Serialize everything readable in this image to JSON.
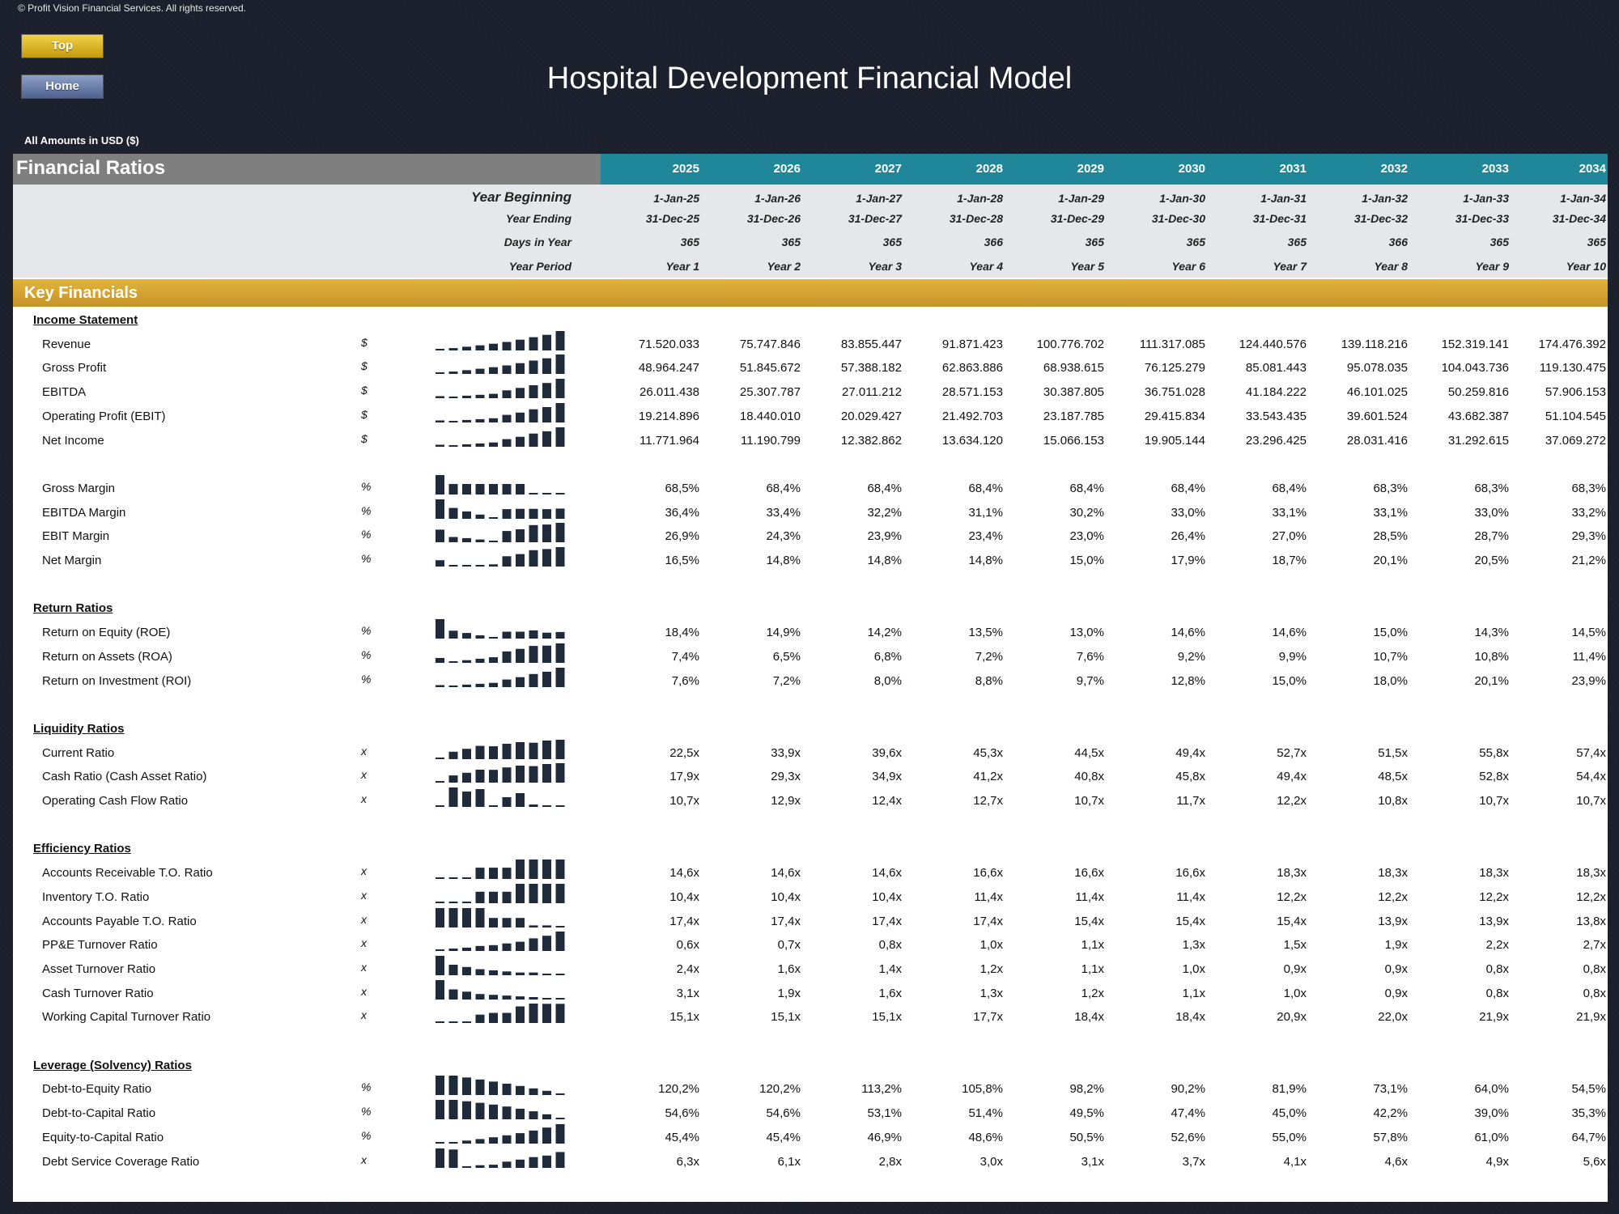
{
  "copyright": "© Profit Vision Financial Services. All rights reserved.",
  "nav": {
    "top_label": "Top",
    "home_label": "Home"
  },
  "title": "Hospital Development Financial Model",
  "amounts_note": "All Amounts in  USD ($)",
  "sheet_title": "Financial Ratios",
  "years": [
    "2025",
    "2026",
    "2027",
    "2028",
    "2029",
    "2030",
    "2031",
    "2032",
    "2033",
    "2034"
  ],
  "meta_rows": [
    {
      "label": "Year Beginning",
      "values": [
        "1-Jan-25",
        "1-Jan-26",
        "1-Jan-27",
        "1-Jan-28",
        "1-Jan-29",
        "1-Jan-30",
        "1-Jan-31",
        "1-Jan-32",
        "1-Jan-33",
        "1-Jan-34"
      ]
    },
    {
      "label": "Year Ending",
      "values": [
        "31-Dec-25",
        "31-Dec-26",
        "31-Dec-27",
        "31-Dec-28",
        "31-Dec-29",
        "31-Dec-30",
        "31-Dec-31",
        "31-Dec-32",
        "31-Dec-33",
        "31-Dec-34"
      ]
    },
    {
      "label": "Days in Year",
      "values": [
        "365",
        "365",
        "365",
        "366",
        "365",
        "365",
        "365",
        "366",
        "365",
        "365"
      ]
    },
    {
      "label": "Year Period",
      "values": [
        "Year 1",
        "Year 2",
        "Year 3",
        "Year 4",
        "Year 5",
        "Year 6",
        "Year 7",
        "Year 8",
        "Year 9",
        "Year 10"
      ]
    }
  ],
  "key_financials_label": "Key Financials",
  "colors": {
    "teal": "#20879a",
    "gold": "#d4a52f",
    "spark": "#1f2a3a"
  },
  "sections": [
    {
      "title": "Income Statement",
      "rows": [
        {
          "label": "Revenue",
          "unit": "$",
          "values": [
            "71.520.033",
            "75.747.846",
            "83.855.447",
            "91.871.423",
            "100.776.702",
            "111.317.085",
            "124.440.576",
            "139.118.216",
            "152.319.141",
            "174.476.392"
          ],
          "spark": [
            71520033,
            75747846,
            83855447,
            91871423,
            100776702,
            111317085,
            124440576,
            139118216,
            152319141,
            174476392
          ]
        },
        {
          "label": "Gross Profit",
          "unit": "$",
          "values": [
            "48.964.247",
            "51.845.672",
            "57.388.182",
            "62.863.886",
            "68.938.615",
            "76.125.279",
            "85.081.443",
            "95.078.035",
            "104.043.736",
            "119.130.475"
          ],
          "spark": [
            48964247,
            51845672,
            57388182,
            62863886,
            68938615,
            76125279,
            85081443,
            95078035,
            104043736,
            119130475
          ]
        },
        {
          "label": "EBITDA",
          "unit": "$",
          "values": [
            "26.011.438",
            "25.307.787",
            "27.011.212",
            "28.571.153",
            "30.387.805",
            "36.751.028",
            "41.184.222",
            "46.101.025",
            "50.259.816",
            "57.906.153"
          ],
          "spark": [
            26011438,
            25307787,
            27011212,
            28571153,
            30387805,
            36751028,
            41184222,
            46101025,
            50259816,
            57906153
          ]
        },
        {
          "label": "Operating Profit (EBIT)",
          "unit": "$",
          "values": [
            "19.214.896",
            "18.440.010",
            "20.029.427",
            "21.492.703",
            "23.187.785",
            "29.415.834",
            "33.543.435",
            "39.601.524",
            "43.682.387",
            "51.104.545"
          ],
          "spark": [
            19214896,
            18440010,
            20029427,
            21492703,
            23187785,
            29415834,
            33543435,
            39601524,
            43682387,
            51104545
          ]
        },
        {
          "label": "Net Income",
          "unit": "$",
          "values": [
            "11.771.964",
            "11.190.799",
            "12.382.862",
            "13.634.120",
            "15.066.153",
            "19.905.144",
            "23.296.425",
            "28.031.416",
            "31.292.615",
            "37.069.272"
          ],
          "spark": [
            11771964,
            11190799,
            12382862,
            13634120,
            15066153,
            19905144,
            23296425,
            28031416,
            31292615,
            37069272
          ]
        },
        {
          "gap": true
        },
        {
          "label": "Gross Margin",
          "unit": "%",
          "values": [
            "68,5%",
            "68,4%",
            "68,4%",
            "68,4%",
            "68,4%",
            "68,4%",
            "68,4%",
            "68,3%",
            "68,3%",
            "68,3%"
          ],
          "spark": [
            68.5,
            68.4,
            68.4,
            68.4,
            68.4,
            68.4,
            68.4,
            68.3,
            68.3,
            68.3
          ]
        },
        {
          "label": "EBITDA Margin",
          "unit": "%",
          "values": [
            "36,4%",
            "33,4%",
            "32,2%",
            "31,1%",
            "30,2%",
            "33,0%",
            "33,1%",
            "33,1%",
            "33,0%",
            "33,2%"
          ],
          "spark": [
            36.4,
            33.4,
            32.2,
            31.1,
            30.2,
            33.0,
            33.1,
            33.1,
            33.0,
            33.2
          ]
        },
        {
          "label": "EBIT Margin",
          "unit": "%",
          "values": [
            "26,9%",
            "24,3%",
            "23,9%",
            "23,4%",
            "23,0%",
            "26,4%",
            "27,0%",
            "28,5%",
            "28,7%",
            "29,3%"
          ],
          "spark": [
            26.9,
            24.3,
            23.9,
            23.4,
            23.0,
            26.4,
            27.0,
            28.5,
            28.7,
            29.3
          ]
        },
        {
          "label": "Net Margin",
          "unit": "%",
          "values": [
            "16,5%",
            "14,8%",
            "14,8%",
            "14,8%",
            "15,0%",
            "17,9%",
            "18,7%",
            "20,1%",
            "20,5%",
            "21,2%"
          ],
          "spark": [
            16.5,
            14.8,
            14.8,
            14.8,
            15.0,
            17.9,
            18.7,
            20.1,
            20.5,
            21.2
          ]
        }
      ]
    },
    {
      "title": "Return Ratios",
      "rows": [
        {
          "label": "Return on Equity (ROE)",
          "unit": "%",
          "values": [
            "18,4%",
            "14,9%",
            "14,2%",
            "13,5%",
            "13,0%",
            "14,6%",
            "14,6%",
            "15,0%",
            "14,3%",
            "14,5%"
          ],
          "spark": [
            18.4,
            14.9,
            14.2,
            13.5,
            13.0,
            14.6,
            14.6,
            15.0,
            14.3,
            14.5
          ]
        },
        {
          "label": "Return on Assets (ROA)",
          "unit": "%",
          "values": [
            "7,4%",
            "6,5%",
            "6,8%",
            "7,2%",
            "7,6%",
            "9,2%",
            "9,9%",
            "10,7%",
            "10,8%",
            "11,4%"
          ],
          "spark": [
            7.4,
            6.5,
            6.8,
            7.2,
            7.6,
            9.2,
            9.9,
            10.7,
            10.8,
            11.4
          ]
        },
        {
          "label": "Return on Investment (ROI)",
          "unit": "%",
          "values": [
            "7,6%",
            "7,2%",
            "8,0%",
            "8,8%",
            "9,7%",
            "12,8%",
            "15,0%",
            "18,0%",
            "20,1%",
            "23,9%"
          ],
          "spark": [
            7.6,
            7.2,
            8.0,
            8.8,
            9.7,
            12.8,
            15.0,
            18.0,
            20.1,
            23.9
          ]
        }
      ]
    },
    {
      "title": "Liquidity Ratios",
      "rows": [
        {
          "label": "Current Ratio",
          "unit": "x",
          "values": [
            "22,5x",
            "33,9x",
            "39,6x",
            "45,3x",
            "44,5x",
            "49,4x",
            "52,7x",
            "51,5x",
            "55,8x",
            "57,4x"
          ],
          "spark": [
            22.5,
            33.9,
            39.6,
            45.3,
            44.5,
            49.4,
            52.7,
            51.5,
            55.8,
            57.4
          ]
        },
        {
          "label": "Cash Ratio (Cash Asset Ratio)",
          "unit": "x",
          "values": [
            "17,9x",
            "29,3x",
            "34,9x",
            "41,2x",
            "40,8x",
            "45,8x",
            "49,4x",
            "48,5x",
            "52,8x",
            "54,4x"
          ],
          "spark": [
            17.9,
            29.3,
            34.9,
            41.2,
            40.8,
            45.8,
            49.4,
            48.5,
            52.8,
            54.4
          ]
        },
        {
          "label": "Operating Cash Flow Ratio",
          "unit": "x",
          "values": [
            "10,7x",
            "12,9x",
            "12,4x",
            "12,7x",
            "10,7x",
            "11,7x",
            "12,2x",
            "10,8x",
            "10,7x",
            "10,7x"
          ],
          "spark": [
            10.7,
            12.9,
            12.4,
            12.7,
            10.7,
            11.7,
            12.2,
            10.8,
            10.7,
            10.7
          ]
        }
      ]
    },
    {
      "title": "Efficiency Ratios",
      "rows": [
        {
          "label": "Accounts Receivable T.O. Ratio",
          "unit": "x",
          "values": [
            "14,6x",
            "14,6x",
            "14,6x",
            "16,6x",
            "16,6x",
            "16,6x",
            "18,3x",
            "18,3x",
            "18,3x",
            "18,3x"
          ],
          "spark": [
            14.6,
            14.6,
            14.6,
            16.6,
            16.6,
            16.6,
            18.3,
            18.3,
            18.3,
            18.3
          ]
        },
        {
          "label": "Inventory T.O. Ratio",
          "unit": "x",
          "values": [
            "10,4x",
            "10,4x",
            "10,4x",
            "11,4x",
            "11,4x",
            "11,4x",
            "12,2x",
            "12,2x",
            "12,2x",
            "12,2x"
          ],
          "spark": [
            10.4,
            10.4,
            10.4,
            11.4,
            11.4,
            11.4,
            12.2,
            12.2,
            12.2,
            12.2
          ]
        },
        {
          "label": "Accounts Payable T.O. Ratio",
          "unit": "x",
          "values": [
            "17,4x",
            "17,4x",
            "17,4x",
            "17,4x",
            "15,4x",
            "15,4x",
            "15,4x",
            "13,9x",
            "13,9x",
            "13,8x"
          ],
          "spark": [
            17.4,
            17.4,
            17.4,
            17.4,
            15.4,
            15.4,
            15.4,
            13.9,
            13.9,
            13.8
          ]
        },
        {
          "label": "PP&E Turnover Ratio",
          "unit": "x",
          "values": [
            "0,6x",
            "0,7x",
            "0,8x",
            "1,0x",
            "1,1x",
            "1,3x",
            "1,5x",
            "1,9x",
            "2,2x",
            "2,7x"
          ],
          "spark": [
            0.6,
            0.7,
            0.8,
            1.0,
            1.1,
            1.3,
            1.5,
            1.9,
            2.2,
            2.7
          ]
        },
        {
          "label": "Asset Turnover Ratio",
          "unit": "x",
          "values": [
            "2,4x",
            "1,6x",
            "1,4x",
            "1,2x",
            "1,1x",
            "1,0x",
            "0,9x",
            "0,9x",
            "0,8x",
            "0,8x"
          ],
          "spark": [
            2.4,
            1.6,
            1.4,
            1.2,
            1.1,
            1.0,
            0.9,
            0.9,
            0.8,
            0.8
          ]
        },
        {
          "label": "Cash Turnover Ratio",
          "unit": "x",
          "values": [
            "3,1x",
            "1,9x",
            "1,6x",
            "1,3x",
            "1,2x",
            "1,1x",
            "1,0x",
            "0,9x",
            "0,8x",
            "0,8x"
          ],
          "spark": [
            3.1,
            1.9,
            1.6,
            1.3,
            1.2,
            1.1,
            1.0,
            0.9,
            0.8,
            0.8
          ]
        },
        {
          "label": "Working Capital Turnover Ratio",
          "unit": "x",
          "values": [
            "15,1x",
            "15,1x",
            "15,1x",
            "17,7x",
            "18,4x",
            "18,4x",
            "20,9x",
            "22,0x",
            "21,9x",
            "21,9x"
          ],
          "spark": [
            15.1,
            15.1,
            15.1,
            17.7,
            18.4,
            18.4,
            20.9,
            22.0,
            21.9,
            21.9
          ]
        }
      ]
    },
    {
      "title": "Leverage (Solvency) Ratios",
      "rows": [
        {
          "label": "Debt-to-Equity Ratio",
          "unit": "%",
          "values": [
            "120,2%",
            "120,2%",
            "113,2%",
            "105,8%",
            "98,2%",
            "90,2%",
            "81,9%",
            "73,1%",
            "64,0%",
            "54,5%"
          ],
          "spark": [
            120.2,
            120.2,
            113.2,
            105.8,
            98.2,
            90.2,
            81.9,
            73.1,
            64.0,
            54.5
          ]
        },
        {
          "label": "Debt-to-Capital Ratio",
          "unit": "%",
          "values": [
            "54,6%",
            "54,6%",
            "53,1%",
            "51,4%",
            "49,5%",
            "47,4%",
            "45,0%",
            "42,2%",
            "39,0%",
            "35,3%"
          ],
          "spark": [
            54.6,
            54.6,
            53.1,
            51.4,
            49.5,
            47.4,
            45.0,
            42.2,
            39.0,
            35.3
          ]
        },
        {
          "label": "Equity-to-Capital Ratio",
          "unit": "%",
          "values": [
            "45,4%",
            "45,4%",
            "46,9%",
            "48,6%",
            "50,5%",
            "52,6%",
            "55,0%",
            "57,8%",
            "61,0%",
            "64,7%"
          ],
          "spark": [
            45.4,
            45.4,
            46.9,
            48.6,
            50.5,
            52.6,
            55.0,
            57.8,
            61.0,
            64.7
          ]
        },
        {
          "label": "Debt Service Coverage Ratio",
          "unit": "x",
          "values": [
            "6,3x",
            "6,1x",
            "2,8x",
            "3,0x",
            "3,1x",
            "3,7x",
            "4,1x",
            "4,6x",
            "4,9x",
            "5,6x"
          ],
          "spark": [
            6.3,
            6.1,
            2.8,
            3.0,
            3.1,
            3.7,
            4.1,
            4.6,
            4.9,
            5.6
          ]
        }
      ]
    }
  ]
}
